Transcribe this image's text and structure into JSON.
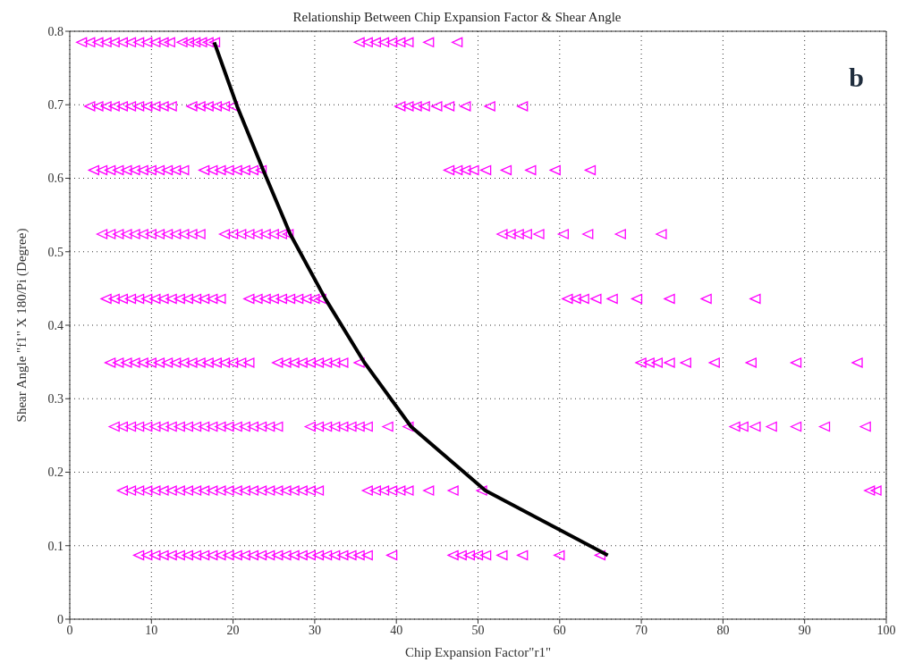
{
  "chart_data": {
    "type": "scatter",
    "title": "Relationship Between Chip Expansion Factor & Shear Angle",
    "xlabel": "Chip Expansion Factor\"r1\"",
    "ylabel": "Shear Angle \"f1\" X 180/Pi (Degree)",
    "annotations": [
      "b"
    ],
    "xlim": [
      0,
      100
    ],
    "xticks": [
      0,
      10,
      20,
      30,
      40,
      50,
      60,
      70,
      80,
      90,
      100
    ],
    "ylim": [
      0,
      0.8
    ],
    "yticks": [
      0,
      0.1,
      0.2,
      0.3,
      0.4,
      0.5,
      0.6,
      0.7,
      0.8
    ],
    "grid": true,
    "marker": "triangle",
    "series": [
      {
        "color": "#ff00ff",
        "x": [
          1.5,
          2.5,
          3.5,
          4.5,
          5.5,
          6.5,
          7.5,
          8.5,
          9.5,
          10.5,
          11.5,
          12.3,
          13.8,
          14.6,
          15.4,
          16.2,
          17,
          17.8,
          35.5,
          36.5,
          37.5,
          38.5,
          39.5,
          40.5,
          41.5,
          44,
          47.5
        ],
        "values": [
          0.785,
          0.785,
          0.785,
          0.785,
          0.785,
          0.785,
          0.785,
          0.785,
          0.785,
          0.785,
          0.785,
          0.785,
          0.785,
          0.785,
          0.785,
          0.785,
          0.785,
          0.785,
          0.785,
          0.785,
          0.785,
          0.785,
          0.785,
          0.785,
          0.785,
          0.785,
          0.785
        ]
      },
      {
        "color": "#ff00ff",
        "x": [
          2.5,
          3.5,
          4.5,
          5.5,
          6.5,
          7.5,
          8.5,
          9.5,
          10.5,
          11.5,
          12.5,
          15,
          16,
          17,
          18,
          19,
          20,
          40.5,
          41.5,
          42.5,
          43.5,
          45,
          46.5,
          48.5,
          51.5,
          55.5
        ],
        "values": [
          0.698,
          0.698,
          0.698,
          0.698,
          0.698,
          0.698,
          0.698,
          0.698,
          0.698,
          0.698,
          0.698,
          0.698,
          0.698,
          0.698,
          0.698,
          0.698,
          0.698,
          0.698,
          0.698,
          0.698,
          0.698,
          0.698,
          0.698,
          0.698,
          0.698,
          0.698
        ]
      },
      {
        "color": "#ff00ff",
        "x": [
          3,
          4,
          5,
          6,
          7,
          8,
          9,
          10,
          11,
          12,
          13,
          14,
          16.5,
          17.5,
          18.5,
          19.5,
          20.5,
          21.5,
          22.5,
          23.5,
          46.5,
          47.5,
          48.5,
          49.5,
          51,
          53.5,
          56.5,
          59.5,
          63.8
        ],
        "values": [
          0.611,
          0.611,
          0.611,
          0.611,
          0.611,
          0.611,
          0.611,
          0.611,
          0.611,
          0.611,
          0.611,
          0.611,
          0.611,
          0.611,
          0.611,
          0.611,
          0.611,
          0.611,
          0.611,
          0.611,
          0.611,
          0.611,
          0.611,
          0.611,
          0.611,
          0.611,
          0.611,
          0.611,
          0.611
        ]
      },
      {
        "color": "#ff00ff",
        "x": [
          4,
          5,
          6,
          7,
          8,
          9,
          10,
          11,
          12,
          13,
          14,
          15,
          16,
          19,
          20,
          21,
          22,
          23,
          24,
          25,
          26,
          26.8,
          53,
          54,
          55,
          56,
          57.5,
          60.5,
          63.5,
          67.5,
          72.5
        ],
        "values": [
          0.524,
          0.524,
          0.524,
          0.524,
          0.524,
          0.524,
          0.524,
          0.524,
          0.524,
          0.524,
          0.524,
          0.524,
          0.524,
          0.524,
          0.524,
          0.524,
          0.524,
          0.524,
          0.524,
          0.524,
          0.524,
          0.524,
          0.524,
          0.524,
          0.524,
          0.524,
          0.524,
          0.524,
          0.524,
          0.524,
          0.524
        ]
      },
      {
        "color": "#ff00ff",
        "x": [
          4.5,
          5.5,
          6.5,
          7.5,
          8.5,
          9.5,
          10.5,
          11.5,
          12.5,
          13.5,
          14.5,
          15.5,
          16.5,
          17.5,
          18.5,
          22,
          23,
          24,
          25,
          26,
          27,
          28,
          29,
          30,
          30.8,
          61,
          62,
          63,
          64.5,
          66.5,
          69.5,
          73.5,
          78,
          84
        ],
        "values": [
          0.436,
          0.436,
          0.436,
          0.436,
          0.436,
          0.436,
          0.436,
          0.436,
          0.436,
          0.436,
          0.436,
          0.436,
          0.436,
          0.436,
          0.436,
          0.436,
          0.436,
          0.436,
          0.436,
          0.436,
          0.436,
          0.436,
          0.436,
          0.436,
          0.436,
          0.436,
          0.436,
          0.436,
          0.436,
          0.436,
          0.436,
          0.436,
          0.436,
          0.436
        ]
      },
      {
        "color": "#ff00ff",
        "x": [
          5,
          6,
          7,
          8,
          9,
          10,
          11,
          12,
          13,
          14,
          15,
          16,
          17,
          18,
          19,
          20,
          21,
          22,
          25.5,
          26.5,
          27.5,
          28.5,
          29.5,
          30.5,
          31.5,
          32.5,
          33.5,
          35.5,
          70,
          71,
          72,
          73.5,
          75.5,
          79,
          83.5,
          89,
          96.5
        ],
        "values": [
          0.349,
          0.349,
          0.349,
          0.349,
          0.349,
          0.349,
          0.349,
          0.349,
          0.349,
          0.349,
          0.349,
          0.349,
          0.349,
          0.349,
          0.349,
          0.349,
          0.349,
          0.349,
          0.349,
          0.349,
          0.349,
          0.349,
          0.349,
          0.349,
          0.349,
          0.349,
          0.349,
          0.349,
          0.349,
          0.349,
          0.349,
          0.349,
          0.349,
          0.349,
          0.349,
          0.349,
          0.349
        ]
      },
      {
        "color": "#ff00ff",
        "x": [
          5.5,
          6.5,
          7.5,
          8.5,
          9.5,
          10.5,
          11.5,
          12.5,
          13.5,
          14.5,
          15.5,
          16.5,
          17.5,
          18.5,
          19.5,
          20.5,
          21.5,
          22.5,
          23.5,
          24.5,
          25.5,
          29.5,
          30.5,
          31.5,
          32.5,
          33.5,
          34.5,
          35.5,
          36.5,
          39,
          41.5,
          81.5,
          82.5,
          84,
          86,
          89,
          92.5,
          97.5
        ],
        "values": [
          0.262,
          0.262,
          0.262,
          0.262,
          0.262,
          0.262,
          0.262,
          0.262,
          0.262,
          0.262,
          0.262,
          0.262,
          0.262,
          0.262,
          0.262,
          0.262,
          0.262,
          0.262,
          0.262,
          0.262,
          0.262,
          0.262,
          0.262,
          0.262,
          0.262,
          0.262,
          0.262,
          0.262,
          0.262,
          0.262,
          0.262,
          0.262,
          0.262,
          0.262,
          0.262,
          0.262,
          0.262,
          0.262
        ]
      },
      {
        "color": "#ff00ff",
        "x": [
          6.5,
          7.5,
          8.5,
          9.5,
          10.5,
          11.5,
          12.5,
          13.5,
          14.5,
          15.5,
          16.5,
          17.5,
          18.5,
          19.5,
          20.5,
          21.5,
          22.5,
          23.5,
          24.5,
          25.5,
          26.5,
          27.5,
          28.5,
          29.5,
          30.5,
          36.5,
          37.5,
          38.5,
          39.5,
          40.5,
          41.5,
          44,
          47,
          50.5,
          98,
          98.8
        ],
        "values": [
          0.175,
          0.175,
          0.175,
          0.175,
          0.175,
          0.175,
          0.175,
          0.175,
          0.175,
          0.175,
          0.175,
          0.175,
          0.175,
          0.175,
          0.175,
          0.175,
          0.175,
          0.175,
          0.175,
          0.175,
          0.175,
          0.175,
          0.175,
          0.175,
          0.175,
          0.175,
          0.175,
          0.175,
          0.175,
          0.175,
          0.175,
          0.175,
          0.175,
          0.175,
          0.175,
          0.175
        ]
      },
      {
        "color": "#ff00ff",
        "x": [
          8.5,
          9.5,
          10.5,
          11.5,
          12.5,
          13.5,
          14.5,
          15.5,
          16.5,
          17.5,
          18.5,
          19.5,
          20.5,
          21.5,
          22.5,
          23.5,
          24.5,
          25.5,
          26.5,
          27.5,
          28.5,
          29.5,
          30.5,
          31.5,
          32.5,
          33.5,
          34.5,
          35.5,
          36.5,
          39.5,
          47,
          48,
          49,
          50,
          51,
          53,
          55.5,
          60,
          65
        ],
        "values": [
          0.087,
          0.087,
          0.087,
          0.087,
          0.087,
          0.087,
          0.087,
          0.087,
          0.087,
          0.087,
          0.087,
          0.087,
          0.087,
          0.087,
          0.087,
          0.087,
          0.087,
          0.087,
          0.087,
          0.087,
          0.087,
          0.087,
          0.087,
          0.087,
          0.087,
          0.087,
          0.087,
          0.087,
          0.087,
          0.087,
          0.087,
          0.087,
          0.087,
          0.087,
          0.087,
          0.087,
          0.087,
          0.087,
          0.087
        ]
      },
      {
        "type": "line",
        "marker": "none",
        "color": "#000000",
        "x": [
          17.7,
          20.5,
          23.7,
          27,
          31.3,
          36.1,
          41.8,
          50.9,
          65.9
        ],
        "values": [
          0.785,
          0.698,
          0.611,
          0.524,
          0.436,
          0.349,
          0.262,
          0.175,
          0.087
        ]
      }
    ]
  }
}
